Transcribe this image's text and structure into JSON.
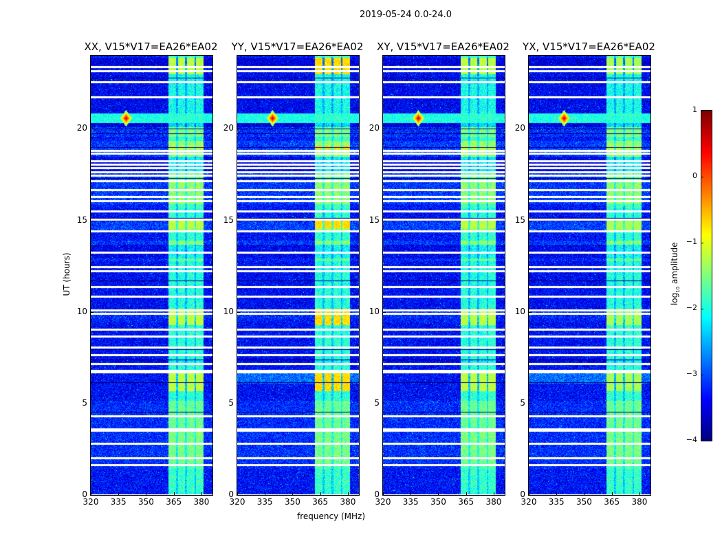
{
  "suptitle": "2019-05-24 0.0-24.0",
  "xlabel": "frequency (MHz)",
  "ylabel": "UT (hours)",
  "colorbar": {
    "label": "log10 amplitude",
    "label_main": "log",
    "label_sub": "10",
    "label_rest": " amplitude",
    "ticks": [
      "1",
      "0",
      "−1",
      "−2",
      "−3",
      "−4"
    ],
    "tick_values": [
      1,
      0,
      -1,
      -2,
      -3,
      -4
    ],
    "range": [
      -4,
      1
    ],
    "colormap": "jet"
  },
  "chart_data": {
    "type": "heatmap",
    "panels": [
      {
        "title": "XX, V15*V17=EA26*EA02",
        "band_gain": 1.0
      },
      {
        "title": "YY, V15*V17=EA26*EA02",
        "band_gain": 1.25
      },
      {
        "title": "XY, V15*V17=EA26*EA02",
        "band_gain": 1.0
      },
      {
        "title": "YX, V15*V17=EA26*EA02",
        "band_gain": 0.95
      }
    ],
    "xlabel": "frequency (MHz)",
    "ylabel": "UT (hours)",
    "xlim": [
      320,
      386
    ],
    "ylim": [
      0,
      24
    ],
    "x_ticks": [
      "320",
      "335",
      "350",
      "365",
      "380"
    ],
    "x_tick_values": [
      320,
      335,
      350,
      365,
      380
    ],
    "y_ticks": [
      "0",
      "5",
      "10",
      "15",
      "20"
    ],
    "y_tick_values": [
      0,
      5,
      10,
      15,
      20
    ],
    "background_log_amplitude": -3.3,
    "rfi_band_mhz": [
      362,
      381
    ],
    "rfi_band_log_amplitude": -1.8,
    "rfi_subbands_mhz": [
      [
        362,
        366
      ],
      [
        367,
        371
      ],
      [
        372,
        376
      ],
      [
        377,
        381
      ]
    ],
    "bright_rfi_hours": [
      [
        9.3,
        10.2
      ],
      [
        5.7,
        6.7
      ],
      [
        23.0,
        23.9
      ],
      [
        18.9,
        19.1
      ],
      [
        14.6,
        15.1
      ]
    ],
    "strong_rfi_event": {
      "hour": 20.6,
      "mhz": 339,
      "log_amplitude": 0.7
    },
    "flagged_hours": [
      0.05,
      1.7,
      2.05,
      2.85,
      3.55,
      3.65,
      4.35,
      6.75,
      6.85,
      7.2,
      7.7,
      8.1,
      8.7,
      9.1,
      9.95,
      10.15,
      10.9,
      11.4,
      12.3,
      12.5,
      13.3,
      14.45,
      15.1,
      15.55,
      16.1,
      16.35,
      16.7,
      17.2,
      17.5,
      17.7,
      17.9,
      18.1,
      18.3,
      18.7,
      18.85,
      21.8,
      22.6,
      23.2,
      23.45
    ],
    "dark_hours": [
      4.55,
      6.15,
      7.4,
      7.95,
      11.7,
      15.15,
      17.3,
      19.0,
      19.75,
      20.0,
      22.8
    ]
  }
}
